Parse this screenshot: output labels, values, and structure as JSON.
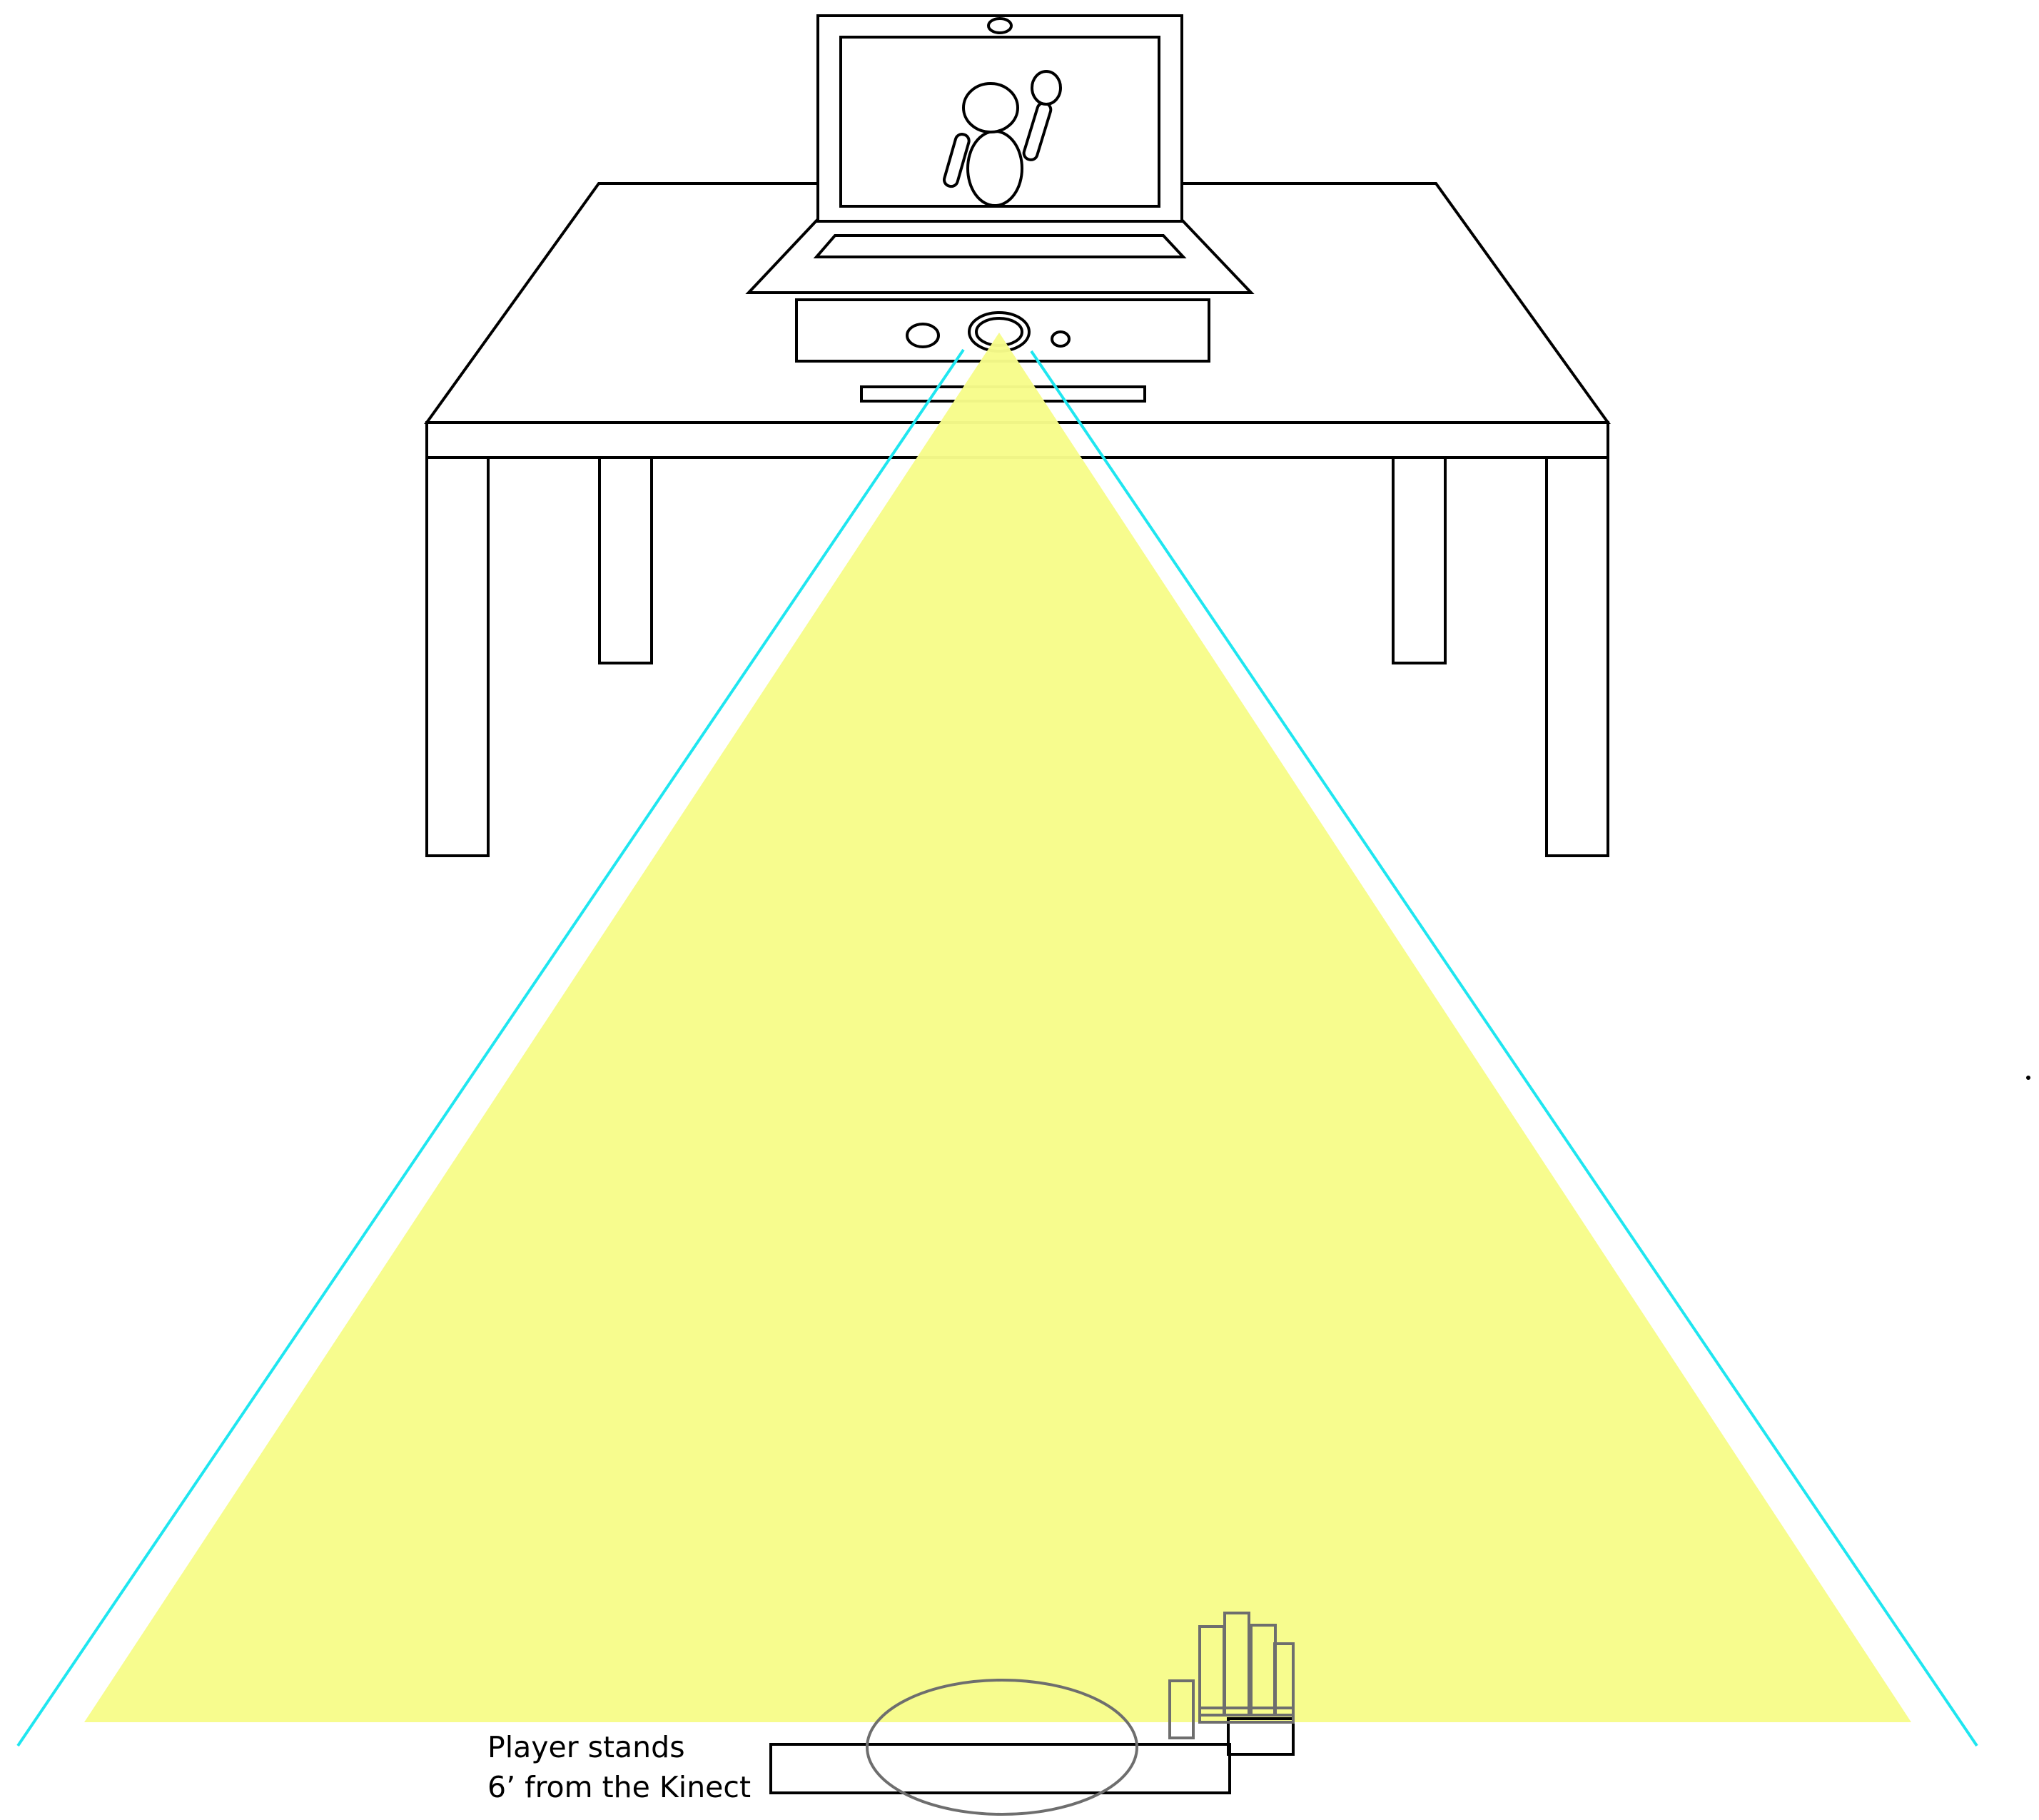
{
  "caption": {
    "line1": "Player stands",
    "line2": "6’ from the Kinect"
  },
  "colors": {
    "stroke": "#000000",
    "field_of_view_fill": "#f7fc8a",
    "field_of_view_edge": "#1fe6f0",
    "overlay_stroke": "#6e6e6e",
    "background": "#ffffff"
  }
}
